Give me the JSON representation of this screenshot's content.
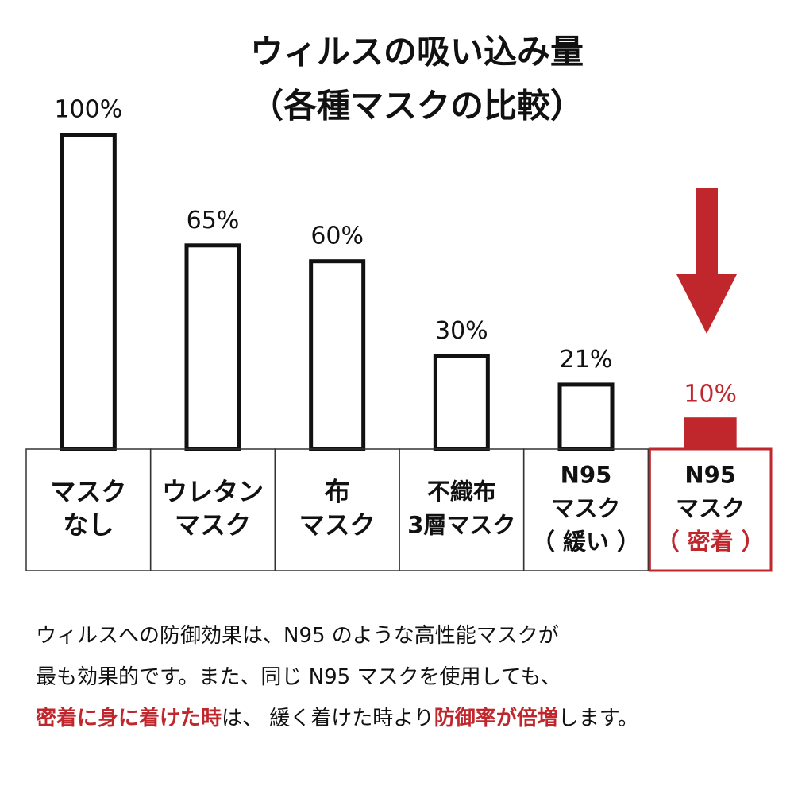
{
  "chart_data": {
    "type": "bar",
    "title": [
      "ウィルスの吸い込み量",
      "（各種マスクの比較）"
    ],
    "categories": [
      [
        {
          "text": "マスク"
        },
        {
          "text": "なし"
        }
      ],
      [
        {
          "text": "ウレタン"
        },
        {
          "text": "マスク"
        }
      ],
      [
        {
          "text": "布"
        },
        {
          "text": "マスク"
        }
      ],
      [
        {
          "text": "不織布"
        },
        {
          "text": "3層マスク"
        }
      ],
      [
        {
          "text": "N95"
        },
        {
          "text": "マスク"
        },
        {
          "text": "（ 緩い ）"
        }
      ],
      [
        {
          "text": "N95"
        },
        {
          "text": "マスク"
        },
        {
          "text": "（ 密着 ）",
          "color": "#c0272d"
        }
      ]
    ],
    "values": [
      100,
      65,
      60,
      30,
      21,
      10
    ],
    "value_labels": [
      "100%",
      "65%",
      "60%",
      "30%",
      "21%",
      "10%"
    ],
    "colors": [
      "#111111",
      "#111111",
      "#111111",
      "#111111",
      "#111111",
      "#c0272d"
    ],
    "filled": [
      false,
      false,
      false,
      false,
      false,
      true
    ],
    "ylim": [
      0,
      100
    ],
    "note": [
      [
        {
          "text": "ウィルスへの防御効果は、N95 のような高性能マスクが"
        }
      ],
      [
        {
          "text": "最も効果的です。また、同じ N95 マスクを使用しても、"
        }
      ],
      [
        {
          "text": "密着に身に着けた時",
          "color": "#c0272d"
        },
        {
          "text": "は、 緩く着けた時より"
        },
        {
          "text": "防御率が倍増",
          "color": "#c0272d"
        },
        {
          "text": "します。"
        }
      ]
    ]
  }
}
